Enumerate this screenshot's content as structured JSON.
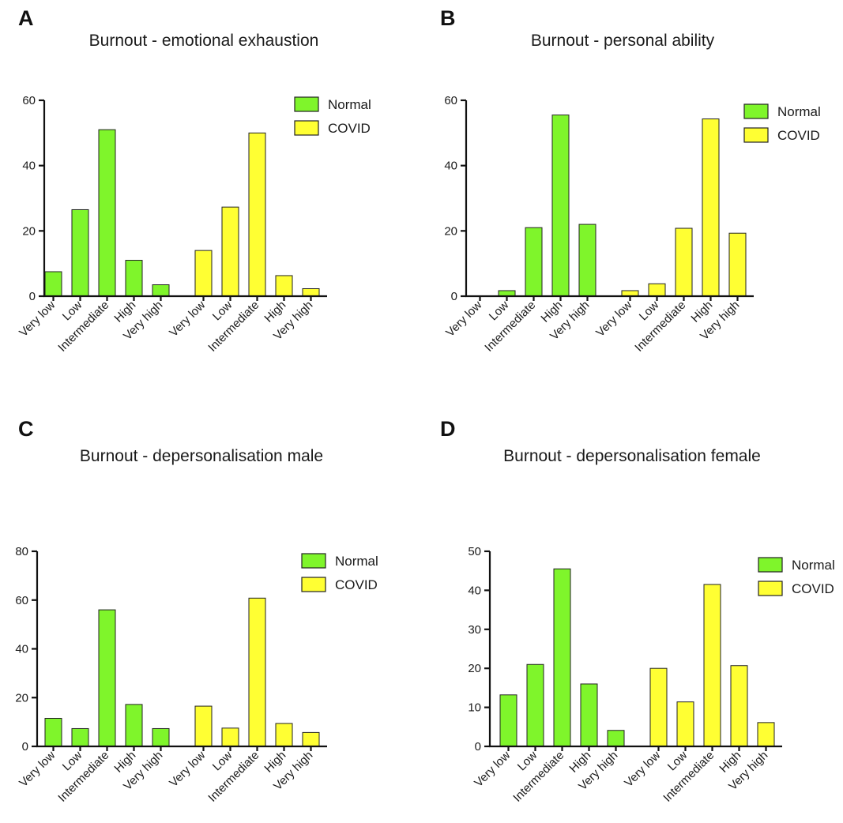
{
  "chart_data": [
    {
      "type": "bar",
      "panel": "A",
      "title": "Burnout - emotional exhaustion",
      "categories": [
        "Very low",
        "Low",
        "Intermediate",
        "High",
        "Very high"
      ],
      "series": [
        {
          "name": "Normal",
          "color": "#7FF52B",
          "values": [
            7.5,
            26.5,
            51,
            11,
            3.5
          ]
        },
        {
          "name": "COVID",
          "color": "#FFFF33",
          "values": [
            14,
            27.3,
            50,
            6.3,
            2.3
          ]
        }
      ],
      "yticks": [
        0,
        20,
        40,
        60
      ],
      "ylim": [
        0,
        60
      ],
      "legend": "top-right"
    },
    {
      "type": "bar",
      "panel": "B",
      "title": "Burnout - personal ability",
      "categories": [
        "Very low",
        "Low",
        "Intermediate",
        "High",
        "Very high"
      ],
      "series": [
        {
          "name": "Normal",
          "color": "#7FF52B",
          "values": [
            0,
            1.7,
            21,
            55.5,
            22
          ]
        },
        {
          "name": "COVID",
          "color": "#FFFF33",
          "values": [
            1.7,
            3.8,
            20.8,
            54.3,
            19.3
          ]
        }
      ],
      "yticks": [
        0,
        20,
        40,
        60
      ],
      "ylim": [
        0,
        60
      ],
      "legend": "top-right"
    },
    {
      "type": "bar",
      "panel": "C",
      "title": "Burnout - depersonalisation male",
      "categories": [
        "Very low",
        "Low",
        "Intermediate",
        "High",
        "Very high"
      ],
      "series": [
        {
          "name": "Normal",
          "color": "#7FF52B",
          "values": [
            11.5,
            7.3,
            56,
            17.2,
            7.3
          ]
        },
        {
          "name": "COVID",
          "color": "#FFFF33",
          "values": [
            16.5,
            7.5,
            60.8,
            9.4,
            5.7
          ]
        }
      ],
      "yticks": [
        0,
        20,
        40,
        60,
        80
      ],
      "ylim": [
        0,
        80
      ],
      "legend": "top-right"
    },
    {
      "type": "bar",
      "panel": "D",
      "title": "Burnout - depersonalisation female",
      "categories": [
        "Very low",
        "Low",
        "Intermediate",
        "High",
        "Very high"
      ],
      "series": [
        {
          "name": "Normal",
          "color": "#7FF52B",
          "values": [
            13.2,
            21,
            45.5,
            16,
            4.1
          ]
        },
        {
          "name": "COVID",
          "color": "#FFFF33",
          "values": [
            20,
            11.4,
            41.5,
            20.7,
            6.1
          ]
        }
      ],
      "yticks": [
        0,
        10,
        20,
        30,
        40,
        50
      ],
      "ylim": [
        0,
        50
      ],
      "legend": "top-right"
    }
  ]
}
